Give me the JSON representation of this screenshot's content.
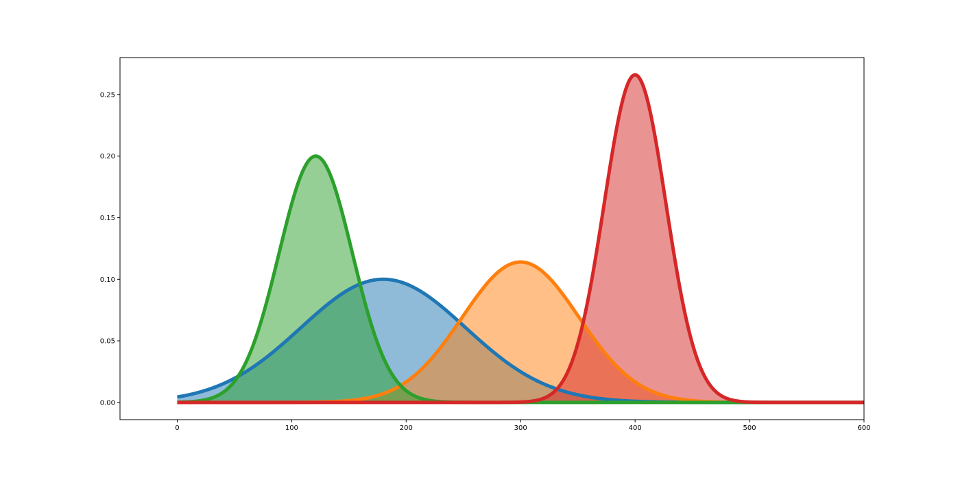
{
  "chart_data": {
    "type": "area",
    "title": "",
    "xlabel": "",
    "ylabel": "",
    "xlim": [
      -50,
      600
    ],
    "ylim": [
      -0.014,
      0.28
    ],
    "x_ticks": [
      0,
      100,
      200,
      300,
      400,
      500,
      600
    ],
    "x_tick_labels": [
      "0",
      "100",
      "200",
      "300",
      "400",
      "500",
      "600"
    ],
    "y_ticks": [
      0.0,
      0.05,
      0.1,
      0.15,
      0.2,
      0.25
    ],
    "y_tick_labels": [
      "0.00",
      "0.05",
      "0.10",
      "0.15",
      "0.20",
      "0.25"
    ],
    "grid": false,
    "legend": "none",
    "series": [
      {
        "color": "#1f77b4",
        "x_range": [
          0,
          600
        ],
        "peak_x": 180,
        "peak_y": 0.1,
        "spread": 72
      },
      {
        "color": "#ff7f0e",
        "x_range": [
          0,
          600
        ],
        "peak_x": 300,
        "peak_y": 0.114,
        "spread": 51
      },
      {
        "color": "#2ca02c",
        "x_range": [
          0,
          600
        ],
        "peak_x": 121,
        "peak_y": 0.2,
        "spread": 32
      },
      {
        "color": "#d62728",
        "x_range": [
          0,
          600
        ],
        "peak_x": 400,
        "peak_y": 0.266,
        "spread": 27
      }
    ]
  }
}
